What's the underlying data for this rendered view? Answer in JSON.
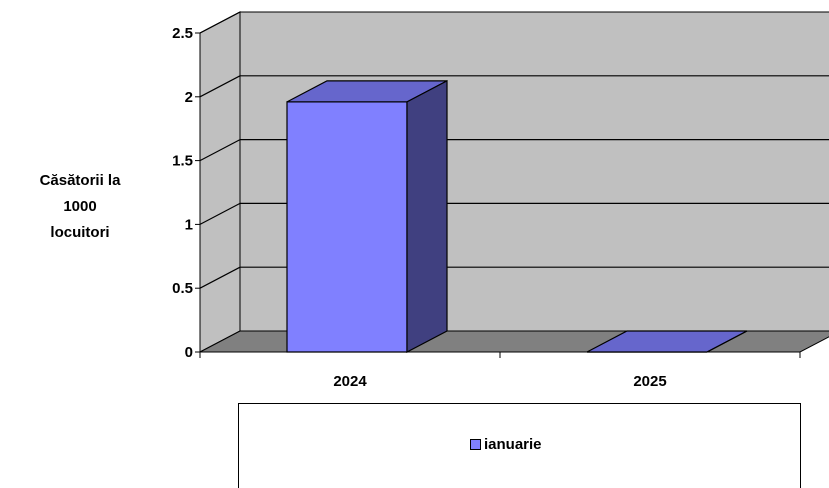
{
  "chart_data": {
    "type": "bar",
    "style": "3d-column",
    "categories": [
      "2024",
      "2025"
    ],
    "series": [
      {
        "name": "ianuarie",
        "values": [
          1.96,
          0
        ]
      }
    ],
    "y_ticks": [
      "0",
      "0.5",
      "1",
      "1.5",
      "2",
      "2.5"
    ],
    "ylim": [
      0,
      2.5
    ],
    "ylabel_lines": [
      "Căsătorii la",
      "1000",
      "locuitori"
    ],
    "xlabel": "",
    "grid": true,
    "legend_position": "bottom",
    "colors": {
      "bar_front": "#8080ff",
      "bar_top": "#6666cc",
      "bar_side": "#404080",
      "wall": "#c0c0c0",
      "floor": "#808080"
    }
  }
}
